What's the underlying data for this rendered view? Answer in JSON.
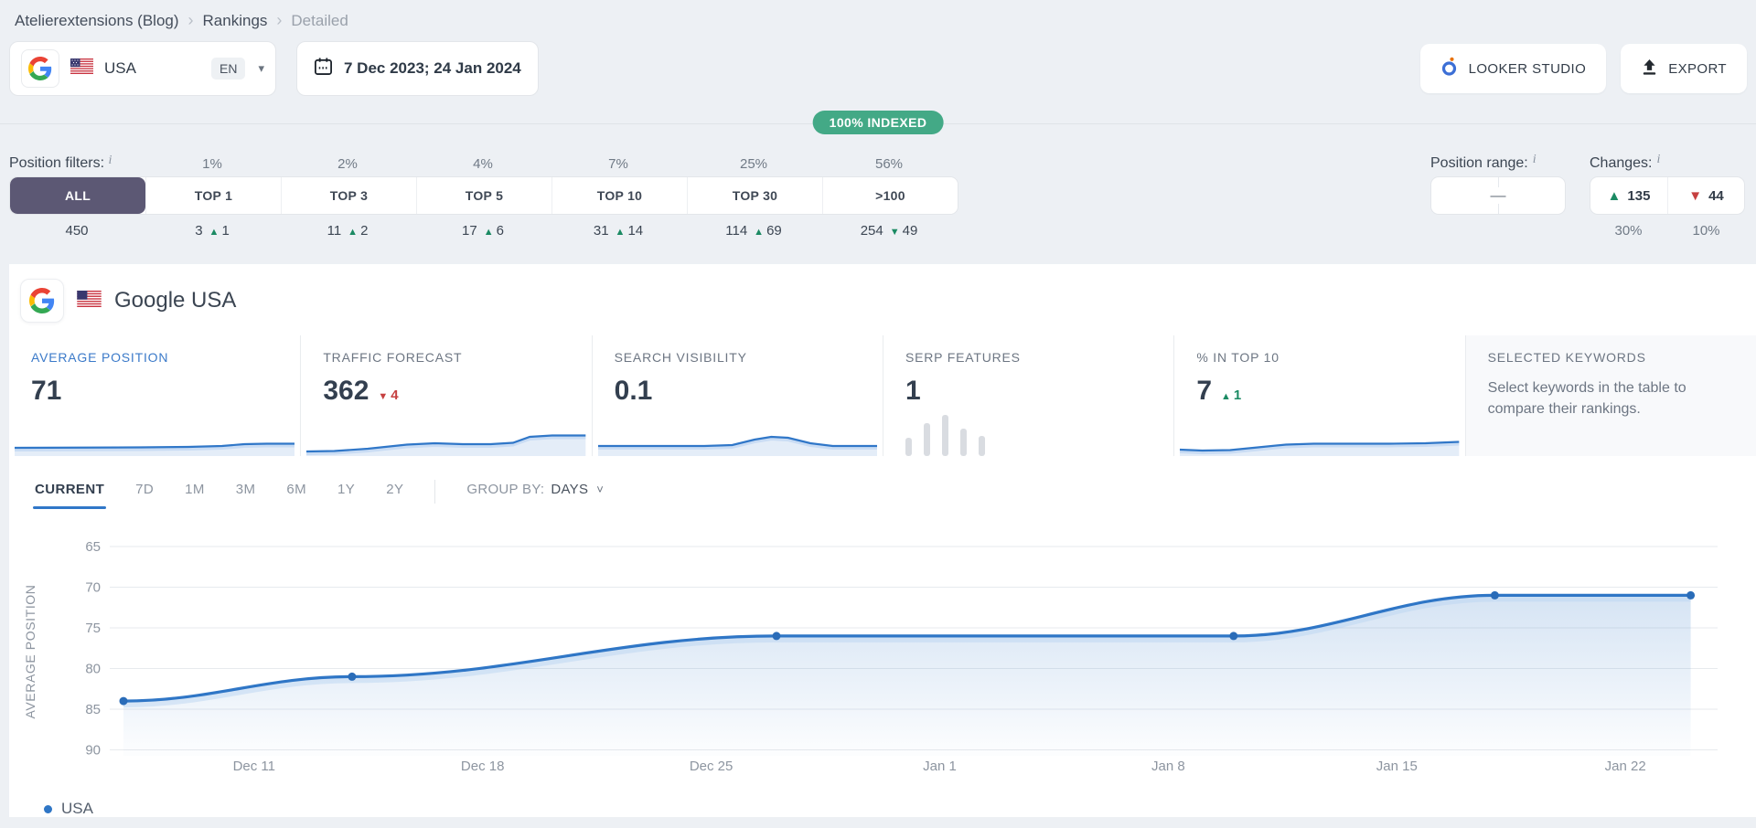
{
  "breadcrumb": {
    "items": [
      "Atelierextensions (Blog)",
      "Rankings",
      "Detailed"
    ]
  },
  "toolbar": {
    "search_engine": {
      "engine": "Google",
      "country": "USA",
      "language": "EN"
    },
    "date_range": "7 Dec 2023; 24 Jan 2024",
    "looker_studio_label": "LOOKER STUDIO",
    "export_label": "EXPORT"
  },
  "indexed_badge": "100% INDEXED",
  "filters": {
    "label": "Position filters:",
    "items": [
      {
        "label": "ALL",
        "percent": "",
        "count": "450",
        "arrow": "",
        "delta": "",
        "active": true
      },
      {
        "label": "TOP 1",
        "percent": "1%",
        "count": "3",
        "arrow": "▲",
        "delta": "1"
      },
      {
        "label": "TOP 3",
        "percent": "2%",
        "count": "11",
        "arrow": "▲",
        "delta": "2"
      },
      {
        "label": "TOP 5",
        "percent": "4%",
        "count": "17",
        "arrow": "▲",
        "delta": "6"
      },
      {
        "label": "TOP 10",
        "percent": "7%",
        "count": "31",
        "arrow": "▲",
        "delta": "14"
      },
      {
        "label": "TOP 30",
        "percent": "25%",
        "count": "114",
        "arrow": "▲",
        "delta": "69"
      },
      {
        "label": ">100",
        "percent": "56%",
        "count": "254",
        "arrow": "▼",
        "delta": "49"
      }
    ],
    "position_range": {
      "label": "Position range:",
      "value": "—"
    },
    "changes": {
      "label": "Changes:",
      "up_arrow": "▲",
      "up": "135",
      "down_arrow": "▼",
      "down": "44",
      "up_pct": "30%",
      "down_pct": "10%"
    }
  },
  "section": {
    "title": "Google USA"
  },
  "cards": [
    {
      "label": "AVERAGE POSITION",
      "value": "71",
      "active": true,
      "spark": [
        [
          0,
          25
        ],
        [
          45,
          24.5
        ],
        [
          62,
          24
        ],
        [
          74,
          23
        ],
        [
          82,
          21
        ],
        [
          90,
          20.5
        ],
        [
          100,
          20.5
        ]
      ]
    },
    {
      "label": "TRAFFIC FORECAST",
      "value": "362",
      "arrow": "▼",
      "delta": "4",
      "spark": [
        [
          0,
          29
        ],
        [
          10,
          28.5
        ],
        [
          22,
          26
        ],
        [
          36,
          21.5
        ],
        [
          46,
          20
        ],
        [
          56,
          21
        ],
        [
          66,
          21
        ],
        [
          74,
          19.5
        ],
        [
          80,
          13
        ],
        [
          88,
          11.5
        ],
        [
          100,
          11.5
        ]
      ]
    },
    {
      "label": "SEARCH VISIBILITY",
      "value": "0.1",
      "spark": [
        [
          0,
          23
        ],
        [
          38,
          23
        ],
        [
          48,
          22
        ],
        [
          56,
          16
        ],
        [
          62,
          13
        ],
        [
          68,
          14
        ],
        [
          76,
          20
        ],
        [
          84,
          23
        ],
        [
          100,
          23
        ]
      ]
    },
    {
      "label": "SERP FEATURES",
      "value": "1",
      "bars": [
        20,
        36,
        45,
        30,
        22
      ]
    },
    {
      "label": "% IN TOP 10",
      "value": "7",
      "arrow": "▲",
      "delta": "1",
      "spark": [
        [
          0,
          27
        ],
        [
          8,
          28
        ],
        [
          18,
          27.5
        ],
        [
          28,
          24.5
        ],
        [
          38,
          21.5
        ],
        [
          48,
          20.5
        ],
        [
          60,
          20.5
        ],
        [
          75,
          20.5
        ],
        [
          88,
          20
        ],
        [
          100,
          18.5
        ]
      ]
    },
    {
      "label": "SELECTED KEYWORDS",
      "text": "Select keywords in the table to compare their rankings."
    }
  ],
  "tabs": {
    "items": [
      "CURRENT",
      "7D",
      "1M",
      "3M",
      "6M",
      "1Y",
      "2Y"
    ],
    "active": "CURRENT",
    "group_by": {
      "label": "GROUP BY:",
      "value": "DAYS"
    }
  },
  "chart_data": {
    "type": "line",
    "y_label": "AVERAGE POSITION",
    "y_inverted": true,
    "y_ticks": [
      65,
      70,
      75,
      80,
      85,
      90
    ],
    "grid": true,
    "legend_position": "bottom-left",
    "x_ticks": [
      {
        "label": "Dec 11",
        "day": 4
      },
      {
        "label": "Dec 18",
        "day": 11
      },
      {
        "label": "Dec 25",
        "day": 18
      },
      {
        "label": "Jan 1",
        "day": 25
      },
      {
        "label": "Jan 8",
        "day": 32
      },
      {
        "label": "Jan 15",
        "day": 39
      },
      {
        "label": "Jan 22",
        "day": 46
      }
    ],
    "series": [
      {
        "name": "USA",
        "points": [
          {
            "date": "Dec 7",
            "day": 0,
            "value": 84
          },
          {
            "date": "Dec 14",
            "day": 7,
            "value": 81
          },
          {
            "date": "Dec 27",
            "day": 20,
            "value": 76
          },
          {
            "date": "Jan 10",
            "day": 34,
            "value": 76
          },
          {
            "date": "Jan 18",
            "day": 42,
            "value": 71
          },
          {
            "date": "Jan 24",
            "day": 48,
            "value": 71
          }
        ]
      }
    ]
  },
  "legend": {
    "label": "USA"
  },
  "colors": {
    "accent_blue": "#3077C8",
    "line_blue": "#2F76C6",
    "dot_blue": "#2A6CB8",
    "badge_green": "#43A986",
    "delta_green": "#1B8A63",
    "delta_red": "#C64040",
    "active_segment": "#5C5874",
    "page_bg": "#EDF0F4",
    "grid_line": "#E7EAEE",
    "muted_text": "#8D95A0",
    "dark_text": "#333F4F"
  }
}
